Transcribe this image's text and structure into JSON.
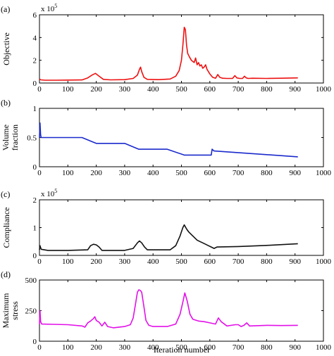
{
  "figure": {
    "xlabel": "Iteration number"
  },
  "chart_data": [
    {
      "type": "line",
      "panel_label": "(a)",
      "ylabel": "Objective",
      "y_multiplier": "x 10",
      "y_multiplier_exp": "5",
      "xlim": [
        0,
        1000
      ],
      "ylim": [
        0,
        6
      ],
      "xticks": [
        0,
        100,
        200,
        300,
        400,
        500,
        600,
        700,
        800,
        900,
        1000
      ],
      "yticks": [
        0,
        2,
        4,
        6
      ],
      "grid": false,
      "color": "#ee1111",
      "series": [
        {
          "x": [
            0,
            5,
            20,
            60,
            100,
            150,
            170,
            185,
            197,
            210,
            225,
            250,
            300,
            330,
            345,
            352,
            356,
            360,
            368,
            380,
            420,
            460,
            480,
            492,
            500,
            505,
            510,
            514,
            518,
            522,
            528,
            535,
            545,
            550,
            555,
            560,
            565,
            570,
            575,
            580,
            585,
            590,
            595,
            600,
            610,
            620,
            628,
            635,
            645,
            660,
            680,
            688,
            695,
            705,
            715,
            722,
            728,
            735,
            750,
            800,
            850,
            910
          ],
          "y": [
            0.35,
            0.28,
            0.25,
            0.25,
            0.26,
            0.27,
            0.45,
            0.7,
            0.85,
            0.6,
            0.32,
            0.28,
            0.3,
            0.4,
            0.7,
            1.2,
            1.4,
            1.0,
            0.5,
            0.32,
            0.3,
            0.35,
            0.6,
            1.1,
            2.0,
            3.3,
            4.9,
            4.7,
            3.3,
            2.6,
            2.3,
            2.0,
            1.8,
            2.2,
            1.6,
            1.8,
            1.5,
            1.6,
            1.3,
            1.4,
            1.6,
            1.2,
            1.0,
            0.8,
            0.5,
            0.42,
            0.75,
            0.5,
            0.42,
            0.4,
            0.4,
            0.65,
            0.45,
            0.4,
            0.4,
            0.6,
            0.45,
            0.4,
            0.42,
            0.4,
            0.42,
            0.45
          ]
        }
      ]
    },
    {
      "type": "line",
      "panel_label": "(b)",
      "ylabel_lines": [
        "Volume",
        "fraction"
      ],
      "xlim": [
        0,
        1000
      ],
      "ylim": [
        0,
        1
      ],
      "xticks": [
        0,
        100,
        200,
        300,
        400,
        500,
        600,
        700,
        800,
        900,
        1000
      ],
      "yticks": [
        0,
        0.5,
        1
      ],
      "grid": false,
      "color": "#1a2acc",
      "series": [
        {
          "x": [
            0,
            2,
            4,
            6,
            150,
            200,
            300,
            350,
            450,
            510,
            605,
            608,
            615,
            910
          ],
          "y": [
            0.5,
            0.75,
            0.55,
            0.5,
            0.5,
            0.4,
            0.4,
            0.3,
            0.3,
            0.2,
            0.2,
            0.3,
            0.27,
            0.17
          ]
        }
      ]
    },
    {
      "type": "line",
      "panel_label": "(c)",
      "ylabel": "Compliance",
      "y_multiplier": "x 10",
      "y_multiplier_exp": "5",
      "xlim": [
        0,
        1000
      ],
      "ylim": [
        0,
        2
      ],
      "xticks": [
        0,
        100,
        200,
        300,
        400,
        500,
        600,
        700,
        800,
        900,
        1000
      ],
      "yticks": [
        0,
        1,
        2
      ],
      "grid": false,
      "color": "#111111",
      "series": [
        {
          "x": [
            0,
            2,
            6,
            30,
            100,
            170,
            180,
            190,
            200,
            210,
            220,
            300,
            330,
            345,
            352,
            360,
            370,
            380,
            460,
            480,
            495,
            505,
            510,
            518,
            525,
            535,
            545,
            555,
            565,
            575,
            585,
            595,
            605,
            615,
            625,
            700,
            800,
            910
          ],
          "y": [
            0.2,
            0.35,
            0.22,
            0.18,
            0.18,
            0.2,
            0.35,
            0.4,
            0.38,
            0.3,
            0.18,
            0.18,
            0.25,
            0.45,
            0.52,
            0.45,
            0.3,
            0.2,
            0.2,
            0.35,
            0.7,
            1.0,
            1.1,
            0.95,
            0.85,
            0.75,
            0.65,
            0.55,
            0.5,
            0.45,
            0.4,
            0.35,
            0.3,
            0.25,
            0.3,
            0.32,
            0.36,
            0.42
          ]
        }
      ]
    },
    {
      "type": "line",
      "panel_label": "(d)",
      "ylabel_lines": [
        "Maximum",
        "stress"
      ],
      "xlim": [
        0,
        1000
      ],
      "ylim": [
        0,
        500
      ],
      "xticks": [
        0,
        100,
        200,
        300,
        400,
        500,
        600,
        700,
        800,
        900,
        1000
      ],
      "yticks": [
        0,
        250,
        500
      ],
      "grid": false,
      "color": "#e211e8",
      "series": [
        {
          "x": [
            0,
            2,
            4,
            8,
            50,
            100,
            150,
            160,
            170,
            180,
            190,
            195,
            200,
            210,
            220,
            230,
            240,
            260,
            300,
            320,
            330,
            338,
            345,
            350,
            355,
            360,
            368,
            375,
            385,
            400,
            450,
            480,
            495,
            505,
            512,
            520,
            530,
            540,
            560,
            580,
            600,
            620,
            630,
            640,
            660,
            690,
            700,
            710,
            720,
            730,
            740,
            800,
            850,
            910
          ],
          "y": [
            140,
            250,
            160,
            140,
            138,
            135,
            125,
            115,
            150,
            165,
            185,
            200,
            170,
            155,
            125,
            155,
            120,
            110,
            120,
            135,
            190,
            300,
            400,
            420,
            415,
            400,
            280,
            170,
            130,
            120,
            120,
            140,
            220,
            320,
            395,
            330,
            220,
            180,
            165,
            160,
            150,
            140,
            190,
            160,
            125,
            135,
            135,
            120,
            130,
            150,
            125,
            130,
            128,
            130
          ]
        }
      ]
    }
  ]
}
